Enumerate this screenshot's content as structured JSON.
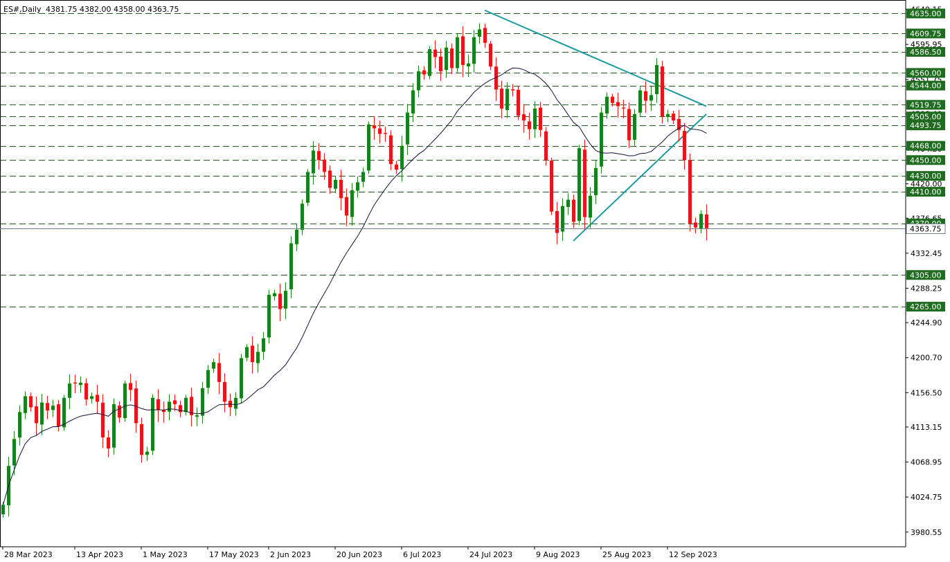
{
  "header": {
    "symbol": "ES#,Daily",
    "ohlc": "4381.75 4382.00 4358.00 4363.75"
  },
  "colors": {
    "bull": "#1a7f1a",
    "bear": "#e8141a",
    "ma": "#10103a",
    "trend": "#1a9aa0",
    "level_line": "#1f5a1f",
    "level_label_bg": "#1f6b1f",
    "axis": "#000000",
    "current_price_line": "#708090"
  },
  "chart_data": {
    "type": "candlestick",
    "symbol": "ES#",
    "timeframe": "Daily",
    "ylim": [
      3962,
      4652
    ],
    "y_ticks": [
      3980.55,
      4024.75,
      4068.95,
      4113.15,
      4156.5,
      4200.7,
      4244.9,
      4288.25,
      4332.45,
      4376.65,
      4420.0,
      4464.2,
      4508.4,
      4551.75,
      4595.95,
      4640.15
    ],
    "x_ticks": [
      {
        "index": 0,
        "label": "28 Mar 2023"
      },
      {
        "index": 13,
        "label": "13 Apr 2023"
      },
      {
        "index": 25,
        "label": "1 May 2023"
      },
      {
        "index": 37,
        "label": "17 May 2023"
      },
      {
        "index": 48,
        "label": "2 Jun 2023"
      },
      {
        "index": 60,
        "label": "20 Jun 2023"
      },
      {
        "index": 72,
        "label": "6 Jul 2023"
      },
      {
        "index": 84,
        "label": "24 Jul 2023"
      },
      {
        "index": 96,
        "label": "9 Aug 2023"
      },
      {
        "index": 108,
        "label": "25 Aug 2023"
      },
      {
        "index": 120,
        "label": "12 Sep 2023"
      }
    ],
    "levels": [
      4635.0,
      4609.75,
      4586.5,
      4560.0,
      4544.0,
      4519.75,
      4505.0,
      4493.75,
      4468.0,
      4450.0,
      4430.0,
      4410.0,
      4370.0,
      4305.0,
      4265.0
    ],
    "level_labels": [
      "4635.00",
      "4609.75",
      "4586.50",
      "4560.00",
      "4544.00",
      "4519.75",
      "4505.00",
      "4493.75",
      "4468.00",
      "4450.00",
      "4430.00",
      "4410.00",
      "4370.00",
      "4305.00",
      "4265.00"
    ],
    "current_price": 4363.75,
    "current_price_label": "4363.75",
    "trendlines": [
      {
        "from": [
          87,
          4639
        ],
        "to": [
          127,
          4518
        ]
      },
      {
        "from": [
          103,
          4348
        ],
        "to": [
          127,
          4508
        ]
      }
    ],
    "ma_period": 20,
    "candles_close": [
      4015,
      4064,
      4098,
      4132,
      4152,
      4138,
      4118,
      4144,
      4134,
      4140,
      4114,
      4150,
      4168,
      4168,
      4169,
      4148,
      4152,
      4145,
      4100,
      4086,
      4142,
      4125,
      4168,
      4160,
      4118,
      4078,
      4082,
      4150,
      4135,
      4132,
      4145,
      4142,
      4132,
      4150,
      4128,
      4128,
      4162,
      4185,
      4195,
      4170,
      4145,
      4138,
      4150,
      4200,
      4214,
      4195,
      4208,
      4225,
      4280,
      4282,
      4262,
      4285,
      4345,
      4362,
      4395,
      4435,
      4462,
      4450,
      4435,
      4415,
      4425,
      4402,
      4380,
      4412,
      4422,
      4435,
      4495,
      4490,
      4483,
      4483,
      4445,
      4438,
      4468,
      4510,
      4538,
      4562,
      4558,
      4590,
      4580,
      4562,
      4592,
      4566,
      4605,
      4570,
      4572,
      4605,
      4615,
      4598,
      4568,
      4539,
      4515,
      4540,
      4538,
      4506,
      4500,
      4489,
      4515,
      4488,
      4450,
      4385,
      4358,
      4392,
      4400,
      4372,
      4465,
      4378,
      4405,
      4440,
      4510,
      4530,
      4522,
      4518,
      4515,
      4475,
      4508,
      4538,
      4525,
      4532,
      4570,
      4505,
      4508,
      4500,
      4488,
      4450,
      4370,
      4365,
      4382,
      4364
    ]
  }
}
